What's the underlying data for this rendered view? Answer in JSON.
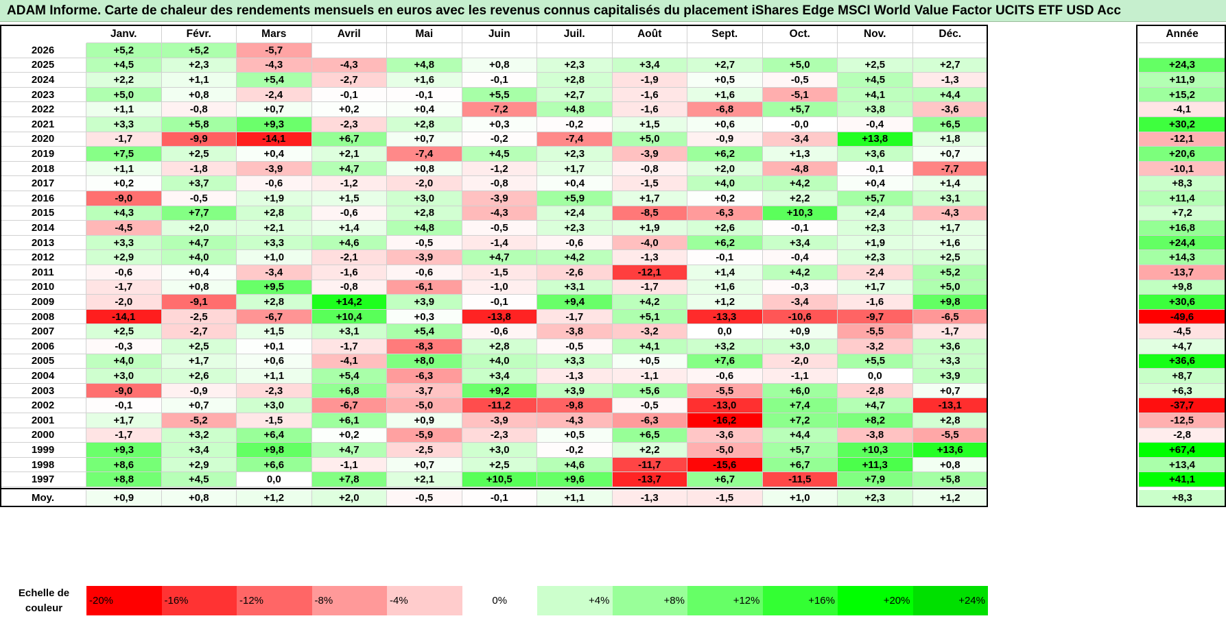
{
  "title": "ADAM Informe. Carte de chaleur des rendements mensuels en euros avec les revenus connus capitalisés du placement iShares Edge MSCI World Value Factor UCITS ETF USD Acc",
  "chart_data": {
    "type": "heatmap",
    "title": "ADAM Informe. Carte de chaleur des rendements mensuels en euros avec les revenus connus capitalisés du placement iShares Edge MSCI World Value Factor UCITS ETF USD Acc",
    "columns": [
      "Janv.",
      "Févr.",
      "Mars",
      "Avril",
      "Mai",
      "Juin",
      "Juil.",
      "Août",
      "Sept.",
      "Oct.",
      "Nov.",
      "Déc."
    ],
    "year_header": "Année",
    "rows": [
      {
        "year": "2026",
        "months": [
          "+5,2",
          "+5,2",
          "-5,7",
          "",
          "",
          "",
          "",
          "",
          "",
          "",
          "",
          ""
        ],
        "annual": ""
      },
      {
        "year": "2025",
        "months": [
          "+4,5",
          "+2,3",
          "-4,3",
          "-4,3",
          "+4,8",
          "+0,8",
          "+2,3",
          "+3,4",
          "+2,7",
          "+5,0",
          "+2,5",
          "+2,7"
        ],
        "annual": "+24,3"
      },
      {
        "year": "2024",
        "months": [
          "+2,2",
          "+1,1",
          "+5,4",
          "-2,7",
          "+1,6",
          "-0,1",
          "+2,8",
          "-1,9",
          "+0,5",
          "-0,5",
          "+4,5",
          "-1,3"
        ],
        "annual": "+11,9"
      },
      {
        "year": "2023",
        "months": [
          "+5,0",
          "+0,8",
          "-2,4",
          "-0,1",
          "-0,1",
          "+5,5",
          "+2,7",
          "-1,6",
          "+1,6",
          "-5,1",
          "+4,1",
          "+4,4"
        ],
        "annual": "+15,2"
      },
      {
        "year": "2022",
        "months": [
          "+1,1",
          "-0,8",
          "+0,7",
          "+0,2",
          "+0,4",
          "-7,2",
          "+4,8",
          "-1,6",
          "-6,8",
          "+5,7",
          "+3,8",
          "-3,6"
        ],
        "annual": "-4,1"
      },
      {
        "year": "2021",
        "months": [
          "+3,3",
          "+5,8",
          "+9,3",
          "-2,3",
          "+2,8",
          "+0,3",
          "-0,2",
          "+1,5",
          "+0,6",
          "-0,0",
          "-0,4",
          "+6,5"
        ],
        "annual": "+30,2"
      },
      {
        "year": "2020",
        "months": [
          "-1,7",
          "-9,9",
          "-14,1",
          "+6,7",
          "+0,7",
          "-0,2",
          "-7,4",
          "+5,0",
          "-0,9",
          "-3,4",
          "+13,8",
          "+1,8"
        ],
        "annual": "-12,1"
      },
      {
        "year": "2019",
        "months": [
          "+7,5",
          "+2,5",
          "+0,4",
          "+2,1",
          "-7,4",
          "+4,5",
          "+2,3",
          "-3,9",
          "+6,2",
          "+1,3",
          "+3,6",
          "+0,7"
        ],
        "annual": "+20,6"
      },
      {
        "year": "2018",
        "months": [
          "+1,1",
          "-1,8",
          "-3,9",
          "+4,7",
          "+0,8",
          "-1,2",
          "+1,7",
          "-0,8",
          "+2,0",
          "-4,8",
          "-0,1",
          "-7,7"
        ],
        "annual": "-10,1"
      },
      {
        "year": "2017",
        "months": [
          "+0,2",
          "+3,7",
          "-0,6",
          "-1,2",
          "-2,0",
          "-0,8",
          "+0,4",
          "-1,5",
          "+4,0",
          "+4,2",
          "+0,4",
          "+1,4"
        ],
        "annual": "+8,3"
      },
      {
        "year": "2016",
        "months": [
          "-9,0",
          "-0,5",
          "+1,9",
          "+1,5",
          "+3,0",
          "-3,9",
          "+5,9",
          "+1,7",
          "+0,2",
          "+2,2",
          "+5,7",
          "+3,1"
        ],
        "annual": "+11,4"
      },
      {
        "year": "2015",
        "months": [
          "+4,3",
          "+7,7",
          "+2,8",
          "-0,6",
          "+2,8",
          "-4,3",
          "+2,4",
          "-8,5",
          "-6,3",
          "+10,3",
          "+2,4",
          "-4,3"
        ],
        "annual": "+7,2"
      },
      {
        "year": "2014",
        "months": [
          "-4,5",
          "+2,0",
          "+2,1",
          "+1,4",
          "+4,8",
          "-0,5",
          "+2,3",
          "+1,9",
          "+2,6",
          "-0,1",
          "+2,3",
          "+1,7"
        ],
        "annual": "+16,8"
      },
      {
        "year": "2013",
        "months": [
          "+3,3",
          "+4,7",
          "+3,3",
          "+4,6",
          "-0,5",
          "-1,4",
          "-0,6",
          "-4,0",
          "+6,2",
          "+3,4",
          "+1,9",
          "+1,6"
        ],
        "annual": "+24,4"
      },
      {
        "year": "2012",
        "months": [
          "+2,9",
          "+4,0",
          "+1,0",
          "-2,1",
          "-3,9",
          "+4,7",
          "+4,2",
          "-1,3",
          "-0,1",
          "-0,4",
          "+2,3",
          "+2,5"
        ],
        "annual": "+14,3"
      },
      {
        "year": "2011",
        "months": [
          "-0,6",
          "+0,4",
          "-3,4",
          "-1,6",
          "-0,6",
          "-1,5",
          "-2,6",
          "-12,1",
          "+1,4",
          "+4,2",
          "-2,4",
          "+5,2"
        ],
        "annual": "-13,7"
      },
      {
        "year": "2010",
        "months": [
          "-1,7",
          "+0,8",
          "+9,5",
          "-0,8",
          "-6,1",
          "-1,0",
          "+3,1",
          "-1,7",
          "+1,6",
          "-0,3",
          "+1,7",
          "+5,0"
        ],
        "annual": "+9,8"
      },
      {
        "year": "2009",
        "months": [
          "-2,0",
          "-9,1",
          "+2,8",
          "+14,2",
          "+3,9",
          "-0,1",
          "+9,4",
          "+4,2",
          "+1,2",
          "-3,4",
          "-1,6",
          "+9,8"
        ],
        "annual": "+30,6"
      },
      {
        "year": "2008",
        "months": [
          "-14,1",
          "-2,5",
          "-6,7",
          "+10,4",
          "+0,3",
          "-13,8",
          "-1,7",
          "+5,1",
          "-13,3",
          "-10,6",
          "-9,7",
          "-6,5"
        ],
        "annual": "-49,6"
      },
      {
        "year": "2007",
        "months": [
          "+2,5",
          "-2,7",
          "+1,5",
          "+3,1",
          "+5,4",
          "-0,6",
          "-3,8",
          "-3,2",
          "0,0",
          "+0,9",
          "-5,5",
          "-1,7"
        ],
        "annual": "-4,5"
      },
      {
        "year": "2006",
        "months": [
          "-0,3",
          "+2,5",
          "+0,1",
          "-1,7",
          "-8,3",
          "+2,8",
          "-0,5",
          "+4,1",
          "+3,2",
          "+3,0",
          "-3,2",
          "+3,6"
        ],
        "annual": "+4,7"
      },
      {
        "year": "2005",
        "months": [
          "+4,0",
          "+1,7",
          "+0,6",
          "-4,1",
          "+8,0",
          "+4,0",
          "+3,3",
          "+0,5",
          "+7,6",
          "-2,0",
          "+5,5",
          "+3,3"
        ],
        "annual": "+36,6"
      },
      {
        "year": "2004",
        "months": [
          "+3,0",
          "+2,6",
          "+1,1",
          "+5,4",
          "-6,3",
          "+3,4",
          "-1,3",
          "-1,1",
          "-0,6",
          "-1,1",
          "0,0",
          "+3,9"
        ],
        "annual": "+8,7"
      },
      {
        "year": "2003",
        "months": [
          "-9,0",
          "-0,9",
          "-2,3",
          "+6,8",
          "-3,7",
          "+9,2",
          "+3,9",
          "+5,6",
          "-5,5",
          "+6,0",
          "-2,8",
          "+0,7"
        ],
        "annual": "+6,3"
      },
      {
        "year": "2002",
        "months": [
          "-0,1",
          "+0,7",
          "+3,0",
          "-6,7",
          "-5,0",
          "-11,2",
          "-9,8",
          "-0,5",
          "-13,0",
          "+7,4",
          "+4,7",
          "-13,1"
        ],
        "annual": "-37,7"
      },
      {
        "year": "2001",
        "months": [
          "+1,7",
          "-5,2",
          "-1,5",
          "+6,1",
          "+0,9",
          "-3,9",
          "-4,3",
          "-6,3",
          "-16,2",
          "+7,2",
          "+8,2",
          "+2,8"
        ],
        "annual": "-12,5"
      },
      {
        "year": "2000",
        "months": [
          "-1,7",
          "+3,2",
          "+6,4",
          "+0,2",
          "-5,9",
          "-2,3",
          "+0,5",
          "+6,5",
          "-3,6",
          "+4,4",
          "-3,8",
          "-5,5"
        ],
        "annual": "-2,8"
      },
      {
        "year": "1999",
        "months": [
          "+9,3",
          "+3,4",
          "+9,8",
          "+4,7",
          "-2,5",
          "+3,0",
          "-0,2",
          "+2,2",
          "-5,0",
          "+5,7",
          "+10,3",
          "+13,6"
        ],
        "annual": "+67,4"
      },
      {
        "year": "1998",
        "months": [
          "+8,6",
          "+2,9",
          "+6,6",
          "-1,1",
          "+0,7",
          "+2,5",
          "+4,6",
          "-11,7",
          "-15,6",
          "+6,7",
          "+11,3",
          "+0,8"
        ],
        "annual": "+13,4"
      },
      {
        "year": "1997",
        "months": [
          "+8,8",
          "+4,5",
          "0,0",
          "+7,8",
          "+2,1",
          "+10,5",
          "+9,6",
          "-13,7",
          "+6,7",
          "-11,5",
          "+7,9",
          "+5,8"
        ],
        "annual": "+41,1"
      }
    ],
    "average": {
      "label": "Moy.",
      "months": [
        "+0,9",
        "+0,8",
        "+1,2",
        "+2,0",
        "-0,5",
        "-0,1",
        "+1,1",
        "-1,3",
        "-1,5",
        "+1,0",
        "+2,3",
        "+1,2"
      ],
      "annual": "+8,3"
    },
    "legend": {
      "title": "Echelle de couleur",
      "steps": [
        "-20%",
        "-16%",
        "-12%",
        "-8%",
        "-4%",
        "0%",
        "+4%",
        "+8%",
        "+12%",
        "+16%",
        "+20%",
        "+24%"
      ],
      "colors": [
        "#ff0000",
        "#ff3333",
        "#ff6666",
        "#ff9999",
        "#ffcccc",
        "#ffffff",
        "#ccffcc",
        "#99ff99",
        "#66ff66",
        "#33ff33",
        "#00ff00",
        "#00e000"
      ]
    },
    "colors": {
      "negative": "#ff0000",
      "neutral": "#ffffff",
      "positive": "#00ff00",
      "header_bg": "#c6efce"
    }
  }
}
